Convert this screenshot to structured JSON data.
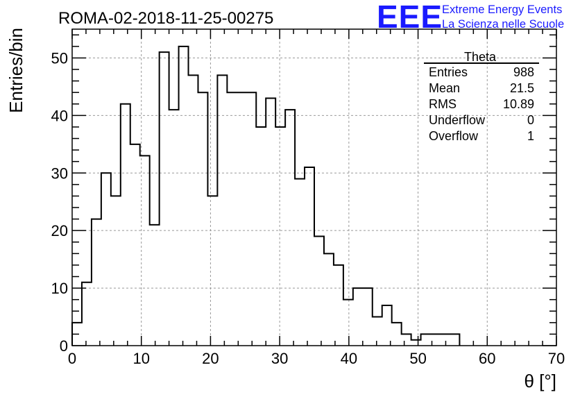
{
  "chart_data": {
    "type": "histogram",
    "title": "ROMA-02-2018-11-25-00275",
    "xlabel": "θ [°]",
    "ylabel": "Entries/bin",
    "xlim": [
      0,
      70
    ],
    "ylim": [
      0,
      55
    ],
    "grid": true,
    "bin_width": 1.4,
    "x_ticks": [
      "0",
      "10",
      "20",
      "30",
      "40",
      "50",
      "60",
      "70"
    ],
    "y_ticks": [
      "0",
      "10",
      "20",
      "30",
      "40",
      "50"
    ],
    "values": [
      4,
      11,
      22,
      30,
      26,
      42,
      35,
      33,
      21,
      51,
      41,
      52,
      47,
      44,
      26,
      47,
      44,
      44,
      44,
      38,
      43,
      38,
      41,
      29,
      31,
      19,
      16,
      14,
      8,
      10,
      10,
      5,
      7,
      4,
      2,
      1,
      2,
      2,
      2,
      2,
      0,
      0,
      0,
      0,
      0,
      0,
      0,
      0,
      0,
      0
    ],
    "stats_box": {
      "title": "Theta",
      "rows": [
        {
          "label": "Entries",
          "value": "988"
        },
        {
          "label": "Mean",
          "value": "21.5"
        },
        {
          "label": "RMS",
          "value": "10.89"
        },
        {
          "label": "Underflow",
          "value": "0"
        },
        {
          "label": "Overflow",
          "value": "1"
        }
      ]
    }
  },
  "logo": {
    "text": "EEE",
    "line1": "Extreme Energy Events",
    "line2": "La Scienza nelle Scuole",
    "color": "#1a1aff"
  }
}
